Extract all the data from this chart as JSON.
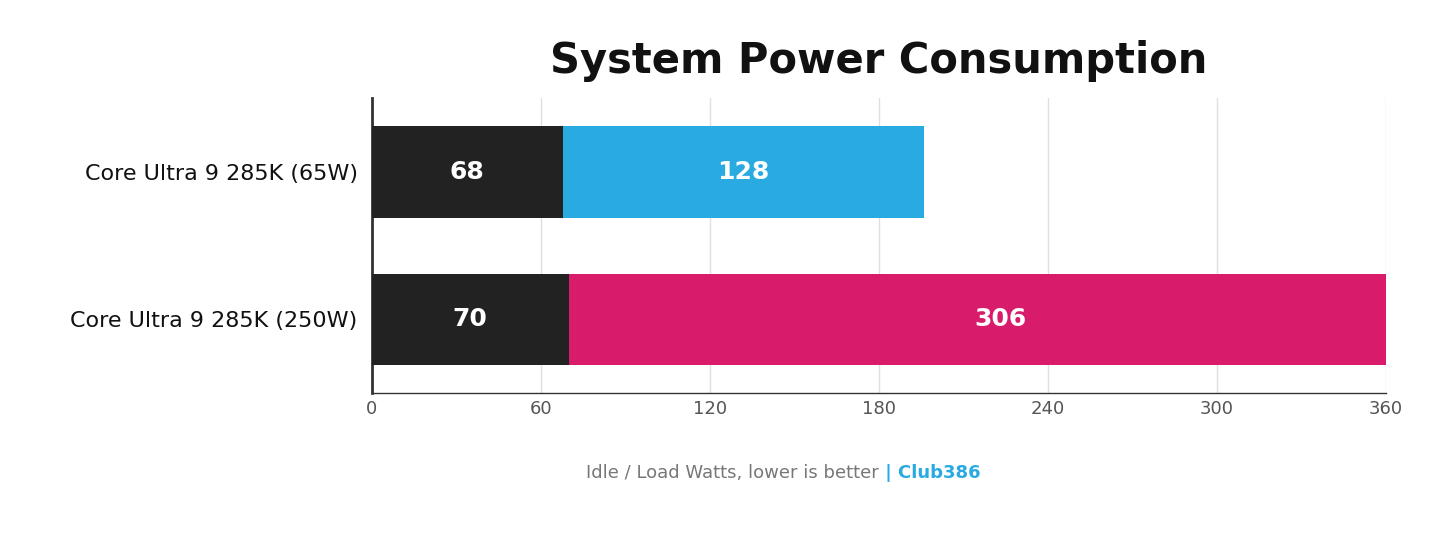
{
  "title": "System Power Consumption",
  "categories": [
    "Core Ultra 9 285K (65W)",
    "Core Ultra 9 285K (250W)"
  ],
  "idle_values": [
    68,
    70
  ],
  "load_values": [
    128,
    306
  ],
  "idle_color": "#222222",
  "load_colors": [
    "#29abe2",
    "#d81b6a"
  ],
  "bar_height": 0.62,
  "xlim": [
    0,
    360
  ],
  "xticks": [
    0,
    60,
    120,
    180,
    240,
    300,
    360
  ],
  "xlabel_text": "Idle / Load Watts, lower is better",
  "xlabel_brand": " | Club386",
  "xlabel_brand_color": "#29abe2",
  "xlabel_color": "#777777",
  "xlabel_fontsize": 13,
  "title_fontsize": 30,
  "bar_label_fontsize": 18,
  "ytick_fontsize": 16,
  "xtick_fontsize": 13,
  "background_color": "#ffffff",
  "text_color": "#ffffff",
  "ytick_color": "#111111",
  "spine_color": "#333333",
  "grid_color": "#e0e0e0"
}
